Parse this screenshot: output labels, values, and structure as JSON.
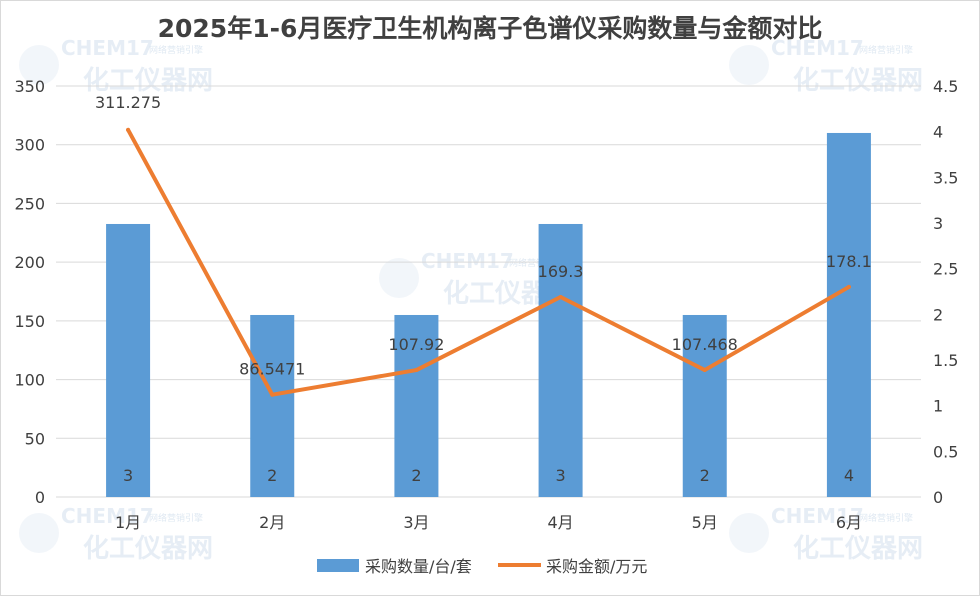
{
  "chart_data": {
    "type": "bar",
    "title": "2025年1-6月医疗卫生机构离子色谱仪采购数量与金额对比",
    "categories": [
      "1月",
      "2月",
      "3月",
      "4月",
      "5月",
      "6月"
    ],
    "series": [
      {
        "name": "采购数量/台/套",
        "type": "bar",
        "axis": "left",
        "values": [
          3,
          2,
          2,
          3,
          2,
          4
        ],
        "labels": [
          "3",
          "2",
          "2",
          "3",
          "2",
          "4"
        ],
        "color": "#5b9bd5"
      },
      {
        "name": "采购金额/万元",
        "type": "line",
        "axis": "right",
        "values": [
          4.02,
          1.12,
          1.39,
          2.19,
          1.39,
          2.3
        ],
        "labels": [
          "311.275",
          "86.5471",
          "107.92",
          "169.3",
          "107.468",
          "178.1"
        ],
        "color": "#ed7d31"
      }
    ],
    "left_axis": {
      "ylim": [
        0,
        350
      ],
      "ticks": [
        "0",
        "50",
        "100",
        "150",
        "200",
        "250",
        "300",
        "350"
      ]
    },
    "right_axis": {
      "ylim": [
        0,
        4.5
      ],
      "ticks": [
        "0",
        "0.5",
        "1",
        "1.5",
        "2",
        "2.5",
        "3",
        "3.5",
        "4",
        "4.5"
      ]
    },
    "grid": true,
    "legend": "bottom"
  },
  "watermark": {
    "brand": "CHEM17",
    "name": "化工仪器网",
    "tagline": "网络营销引擎"
  }
}
